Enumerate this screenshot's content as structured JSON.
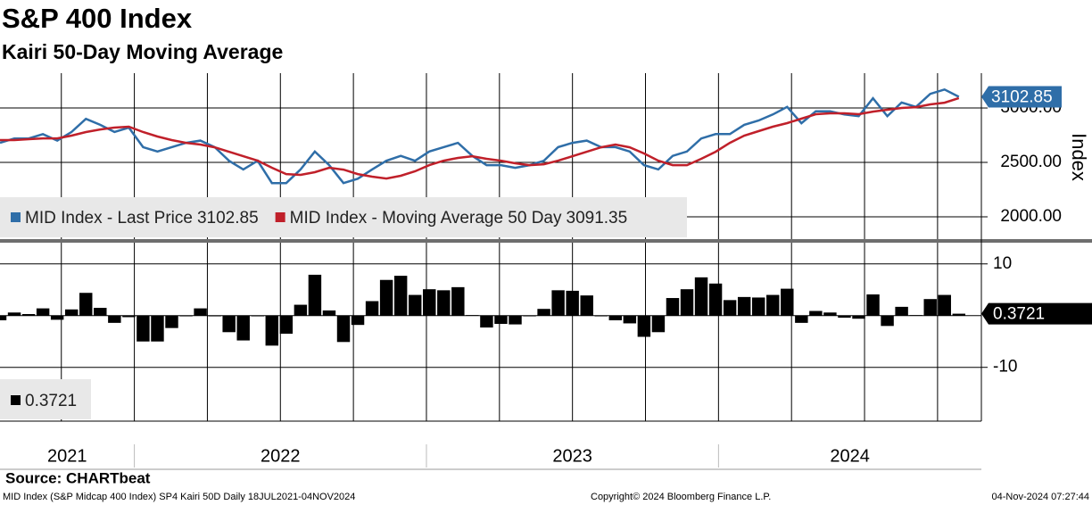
{
  "title": "S&P 400 Index",
  "subtitle": "Kairi 50-Day Moving Average",
  "chart_data": [
    {
      "type": "line",
      "axis_label": "Index",
      "x": [
        2021.54,
        2021.589,
        2021.638,
        2021.687,
        2021.736,
        2021.785,
        2021.834,
        2021.883,
        2021.932,
        2021.981,
        2022.03,
        2022.079,
        2022.128,
        2022.177,
        2022.226,
        2022.275,
        2022.324,
        2022.373,
        2022.422,
        2022.471,
        2022.52,
        2022.569,
        2022.618,
        2022.667,
        2022.716,
        2022.765,
        2022.814,
        2022.863,
        2022.912,
        2022.961,
        2023.01,
        2023.059,
        2023.108,
        2023.157,
        2023.206,
        2023.255,
        2023.304,
        2023.353,
        2023.402,
        2023.451,
        2023.5,
        2023.549,
        2023.598,
        2023.647,
        2023.696,
        2023.745,
        2023.794,
        2023.843,
        2023.892,
        2023.941,
        2023.99,
        2024.039,
        2024.088,
        2024.137,
        2024.186,
        2024.235,
        2024.284,
        2024.333,
        2024.382,
        2024.431,
        2024.48,
        2024.529,
        2024.578,
        2024.627,
        2024.676,
        2024.725,
        2024.774,
        2024.823
      ],
      "series": [
        {
          "name": "MID Index - Last Price",
          "color": "#2f6ea8",
          "values": [
            2680,
            2720,
            2720,
            2760,
            2700,
            2780,
            2900,
            2845,
            2780,
            2820,
            2640,
            2600,
            2640,
            2680,
            2700,
            2640,
            2515,
            2435,
            2515,
            2310,
            2310,
            2435,
            2600,
            2475,
            2310,
            2350,
            2435,
            2515,
            2560,
            2515,
            2600,
            2640,
            2680,
            2560,
            2475,
            2475,
            2450,
            2475,
            2515,
            2640,
            2680,
            2700,
            2640,
            2640,
            2600,
            2475,
            2435,
            2560,
            2600,
            2720,
            2760,
            2760,
            2845,
            2885,
            2940,
            3010,
            2860,
            2970,
            2970,
            2940,
            2925,
            3090,
            2925,
            3050,
            3010,
            3130,
            3170,
            3102.85
          ]
        },
        {
          "name": "MID Index - Moving Average 50 Day",
          "color": "#c0202a",
          "values": [
            2705,
            2705,
            2713,
            2721,
            2721,
            2746,
            2779,
            2803,
            2820,
            2828,
            2779,
            2738,
            2705,
            2680,
            2664,
            2639,
            2598,
            2557,
            2516,
            2451,
            2393,
            2385,
            2410,
            2451,
            2434,
            2393,
            2369,
            2352,
            2377,
            2418,
            2475,
            2516,
            2541,
            2557,
            2533,
            2516,
            2492,
            2475,
            2483,
            2516,
            2557,
            2598,
            2639,
            2664,
            2639,
            2582,
            2516,
            2475,
            2475,
            2533,
            2598,
            2680,
            2746,
            2787,
            2828,
            2861,
            2902,
            2943,
            2951,
            2951,
            2943,
            2967,
            2984,
            3000,
            3008,
            3033,
            3049,
            3091.35
          ]
        }
      ],
      "xlim": [
        2021.54,
        2024.9
      ],
      "xgrid": [
        2021.75,
        2022,
        2022.25,
        2022.5,
        2022.75,
        2023,
        2023.25,
        2023.5,
        2023.75,
        2024,
        2024.25,
        2024.5,
        2024.75
      ],
      "ylim": [
        1795,
        3320
      ],
      "yticks": [
        {
          "value": 2000,
          "label": "2000.00"
        },
        {
          "value": 2500,
          "label": "2500.00"
        },
        {
          "value": 3000,
          "label": "3000.00"
        }
      ],
      "grid": true
    },
    {
      "type": "bar",
      "color": "#000000",
      "x": [
        2021.54,
        2021.589,
        2021.638,
        2021.687,
        2021.736,
        2021.785,
        2021.834,
        2021.883,
        2021.932,
        2021.981,
        2022.03,
        2022.079,
        2022.128,
        2022.177,
        2022.226,
        2022.275,
        2022.324,
        2022.373,
        2022.422,
        2022.471,
        2022.52,
        2022.569,
        2022.618,
        2022.667,
        2022.716,
        2022.765,
        2022.814,
        2022.863,
        2022.912,
        2022.961,
        2023.01,
        2023.059,
        2023.108,
        2023.157,
        2023.206,
        2023.255,
        2023.304,
        2023.353,
        2023.402,
        2023.451,
        2023.5,
        2023.549,
        2023.598,
        2023.647,
        2023.696,
        2023.745,
        2023.794,
        2023.843,
        2023.892,
        2023.941,
        2023.99,
        2024.039,
        2024.088,
        2024.137,
        2024.186,
        2024.235,
        2024.284,
        2024.333,
        2024.382,
        2024.431,
        2024.48,
        2024.529,
        2024.578,
        2024.627,
        2024.676,
        2024.725,
        2024.774,
        2024.823
      ],
      "values": [
        -0.9,
        0.6,
        0.3,
        1.4,
        -0.8,
        1.2,
        4.4,
        1.5,
        -1.4,
        -0.3,
        -5.0,
        -5.0,
        -2.4,
        0.0,
        1.4,
        0.0,
        -3.2,
        -4.8,
        0.0,
        -5.8,
        -3.5,
        2.1,
        7.9,
        1.0,
        -5.1,
        -1.8,
        2.8,
        6.9,
        7.7,
        4.0,
        5.1,
        4.9,
        5.5,
        0.1,
        -2.3,
        -1.6,
        -1.7,
        0.0,
        1.3,
        4.9,
        4.8,
        3.9,
        0.0,
        -0.9,
        -1.5,
        -4.1,
        -3.2,
        3.4,
        5.1,
        7.4,
        6.2,
        3.0,
        3.6,
        3.5,
        4.0,
        5.2,
        -1.4,
        0.9,
        0.6,
        -0.4,
        -0.6,
        4.1,
        -2.0,
        1.7,
        0.1,
        3.2,
        4.0,
        0.3721
      ],
      "xlim": [
        2021.54,
        2024.9
      ],
      "ylim": [
        -20.4,
        14.1
      ],
      "yticks": [
        -10,
        10
      ],
      "xticks": [
        {
          "value": 2021.77,
          "label": "2021"
        },
        {
          "value": 2022.5,
          "label": "2022"
        },
        {
          "value": 2023.5,
          "label": "2023"
        },
        {
          "value": 2024.45,
          "label": "2024"
        }
      ],
      "grid": true
    }
  ],
  "footer": {
    "source": "Source: CHARTbeat",
    "description": "MID Index (S&P Midcap 400 Index) SP4 Kairi 50D  Daily 18JUL2021-04NOV2024",
    "copyright": "Copyright© 2024 Bloomberg Finance L.P.",
    "timestamp": "04-Nov-2024 07:27:44"
  }
}
